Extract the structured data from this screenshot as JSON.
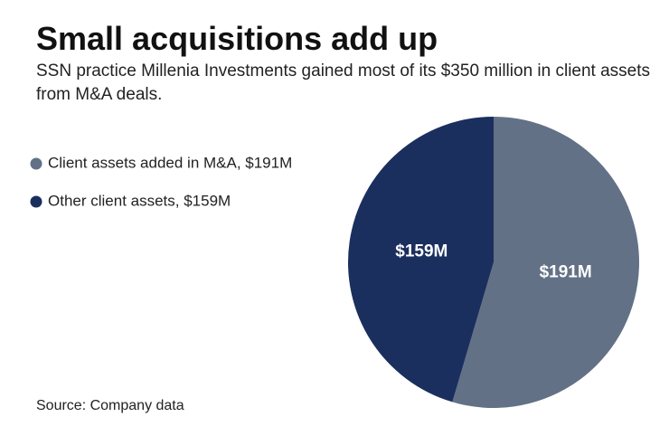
{
  "chart_data": {
    "type": "pie",
    "title": "Small acquisitions add up",
    "subtitle": "SSN practice Millenia Investments gained most of its $350 million in client assets from M&A deals.",
    "source": "Source: Company data",
    "categories": [
      "Client assets added in M&A, $191M",
      "Other client assets, $159M"
    ],
    "values": [
      191,
      159
    ],
    "value_labels": [
      "$191M",
      "$159M"
    ],
    "colors": [
      "#637186",
      "#1b2f5e"
    ],
    "legend": "left"
  }
}
